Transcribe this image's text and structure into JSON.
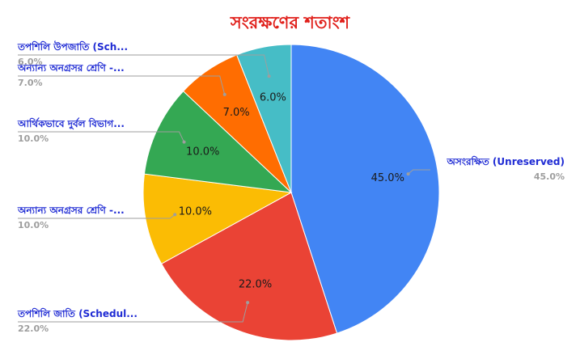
{
  "chart_data": {
    "type": "pie",
    "title": "সংরক্ষণের শতাংশ",
    "title_color": "#e0201b",
    "label_color": "#1f2bd4",
    "percent_color": "#9e9e9e",
    "slices": [
      {
        "name": "অসংরক্ষিত (Unreserved)",
        "value": 45.0,
        "label": "45.0%",
        "legend_pct": "45.0%",
        "color": "#4285f4"
      },
      {
        "name": "তপশিলি জাতি (Schedul...",
        "value": 22.0,
        "label": "22.0%",
        "legend_pct": "22.0%",
        "color": "#ea4335"
      },
      {
        "name": "অন্যান্য অনগ্রসর শ্রেণি -...",
        "value": 10.0,
        "label": "10.0%",
        "legend_pct": "10.0%",
        "color": "#fbbc04"
      },
      {
        "name": "আর্থিকভাবে দুর্বল বিভাগ...",
        "value": 10.0,
        "label": "10.0%",
        "legend_pct": "10.0%",
        "color": "#34a853"
      },
      {
        "name": "অন্যান্য অনগ্রসর শ্রেণি -...",
        "value": 7.0,
        "label": "7.0%",
        "legend_pct": "7.0%",
        "color": "#ff6d01"
      },
      {
        "name": "তপশিলি উপজাতি (Sch...",
        "value": 6.0,
        "label": "6.0%",
        "legend_pct": "6.0%",
        "color": "#46bdc6"
      }
    ]
  }
}
